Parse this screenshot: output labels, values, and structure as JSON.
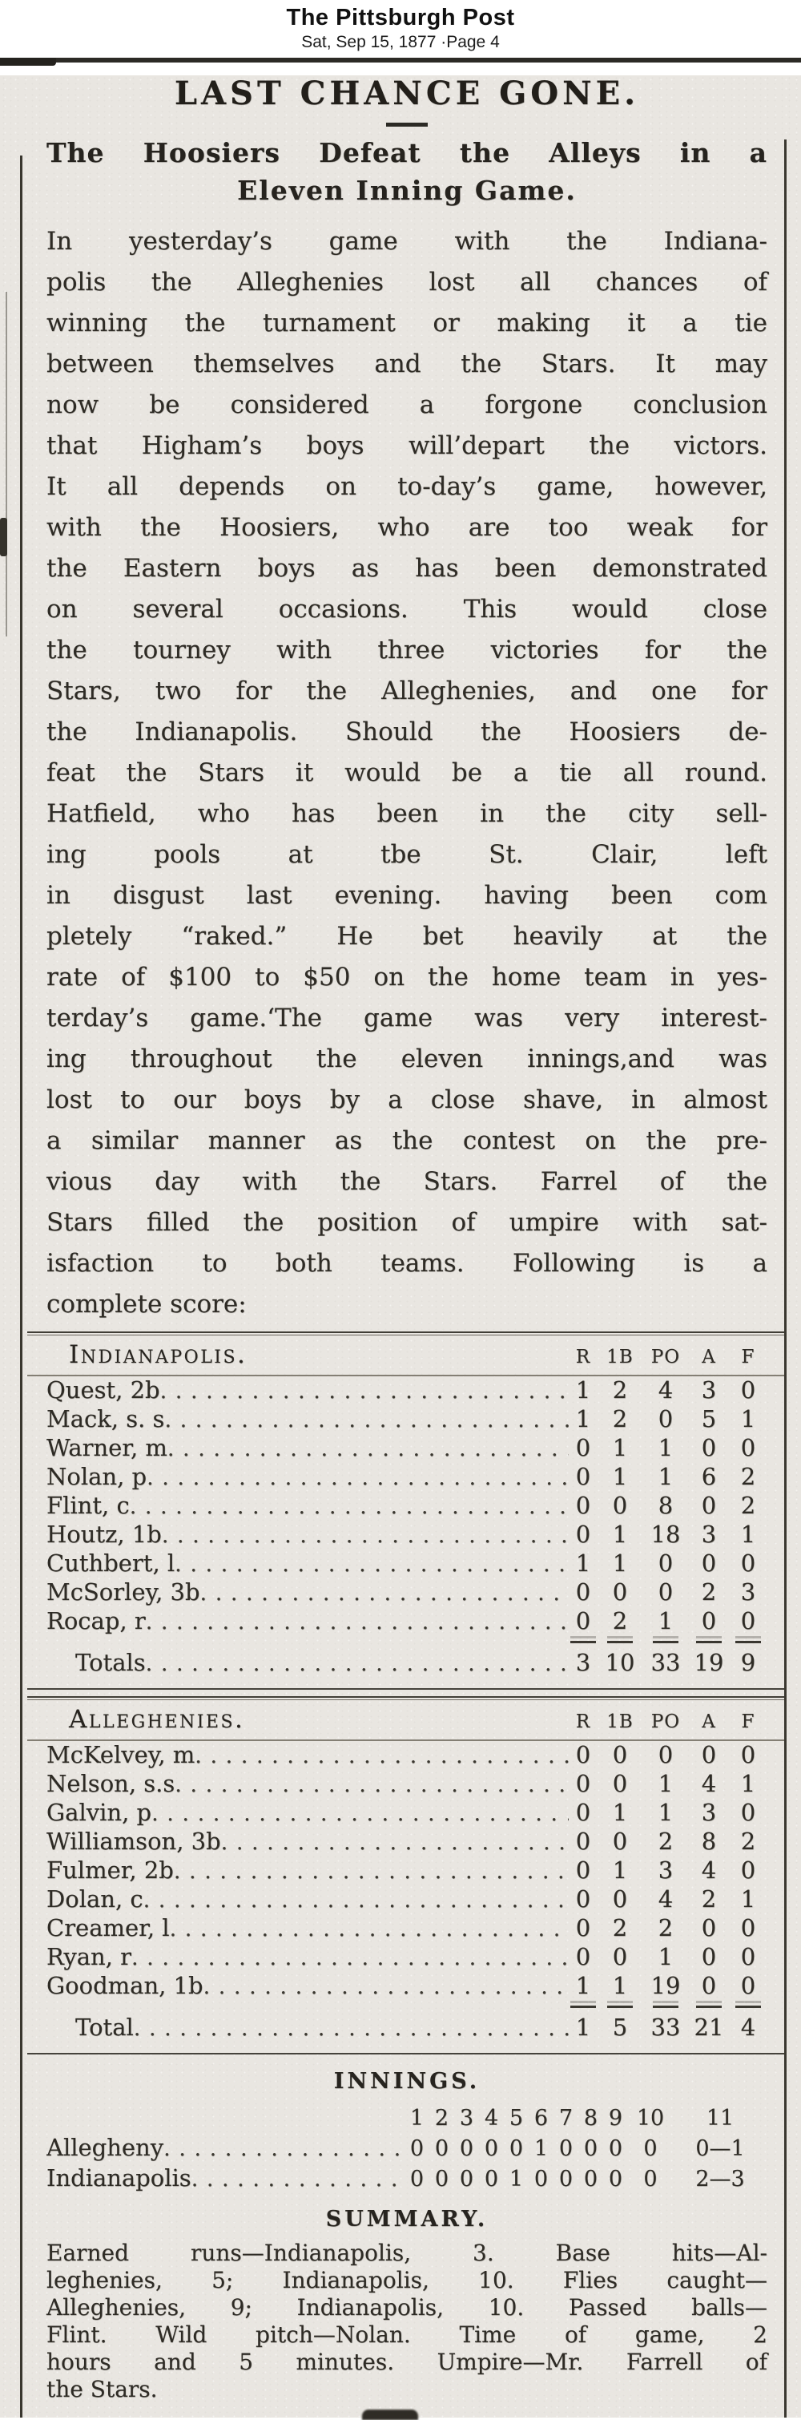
{
  "masthead": {
    "title": "The Pittsburgh Post",
    "date_line": "Sat, Sep 15, 1877 ·Page 4"
  },
  "article": {
    "headline": "LAST CHANCE GONE.",
    "subheadline_line1": "The Hoosiers Defeat the Alleys in a",
    "subheadline_line2": "Eleven Inning Game.",
    "body_lines": [
      "In yesterday’s game with the Indiana-",
      "polis the Alleghenies lost all chances of",
      "winning the turnament or making it a tie",
      "between themselves and the Stars.  It may",
      "now be considered a forgone conclusion",
      "that Higham’s boys will’depart the victors.",
      "It all depends on to-day’s game, however,",
      "with the Hoosiers, who are too weak for",
      "the Eastern boys as has been demonstrated",
      "on several occasions.  This would close",
      "the tourney with three victories for the",
      "Stars, two for the Alleghenies, and one for",
      "the Indianapolis.  Should the Hoosiers de-",
      "feat the Stars it would be a tie all round.",
      "Hatfield, who has been in the city sell-",
      "ing pools at tbe St. Clair, left",
      "in disgust last evening. having been com",
      "pletely “raked.”  He bet heavily at the",
      "rate of $100 to $50 on the home team in yes-",
      "terday’s game.‘The game was very interest-",
      "ing throughout the eleven innings,and was",
      "lost to our boys by a close shave, in almost",
      "a similar manner as the contest on the pre-",
      "vious day with the Stars.  Farrel of the",
      "Stars filled the position of umpire with sat-",
      "isfaction to both teams.  Following is a",
      "complete score:"
    ]
  },
  "box_scores": [
    {
      "team": "Indianapolis.",
      "columns": [
        "R",
        "1B",
        "PO",
        "A",
        "F"
      ],
      "rows": [
        {
          "player": "Quest, 2b",
          "stats": [
            "1",
            "2",
            "4",
            "3",
            "0"
          ]
        },
        {
          "player": "Mack, s. s",
          "stats": [
            "1",
            "2",
            "0",
            "5",
            "1"
          ]
        },
        {
          "player": "Warner, m",
          "stats": [
            "0",
            "1",
            "1",
            "0",
            "0"
          ]
        },
        {
          "player": "Nolan, p",
          "stats": [
            "0",
            "1",
            "1",
            "6",
            "2"
          ]
        },
        {
          "player": "Flint, c",
          "stats": [
            "0",
            "0",
            "8",
            "0",
            "2"
          ]
        },
        {
          "player": "Houtz, 1b",
          "stats": [
            "0",
            "1",
            "18",
            "3",
            "1"
          ]
        },
        {
          "player": "Cuthbert, l",
          "stats": [
            "1",
            "1",
            "0",
            "0",
            "0"
          ]
        },
        {
          "player": "McSorley, 3b",
          "stats": [
            "0",
            "0",
            "0",
            "2",
            "3"
          ]
        },
        {
          "player": "Rocap, r",
          "stats": [
            "0",
            "2",
            "1",
            "0",
            "0"
          ]
        }
      ],
      "totals_label": "Totals",
      "totals": [
        "3",
        "10",
        "33",
        "19",
        "9"
      ]
    },
    {
      "team": "Alleghenies.",
      "columns": [
        "R",
        "1B",
        "PO",
        "A",
        "F"
      ],
      "rows": [
        {
          "player": "McKelvey, m",
          "stats": [
            "0",
            "0",
            "0",
            "0",
            "0"
          ]
        },
        {
          "player": "Nelson, s.s",
          "stats": [
            "0",
            "0",
            "1",
            "4",
            "1"
          ]
        },
        {
          "player": "Galvin, p",
          "stats": [
            "0",
            "1",
            "1",
            "3",
            "0"
          ]
        },
        {
          "player": "Williamson, 3b",
          "stats": [
            "0",
            "0",
            "2",
            "8",
            "2"
          ]
        },
        {
          "player": "Fulmer, 2b",
          "stats": [
            "0",
            "1",
            "3",
            "4",
            "0"
          ]
        },
        {
          "player": "Dolan, c",
          "stats": [
            "0",
            "0",
            "4",
            "2",
            "1"
          ]
        },
        {
          "player": "Creamer, l",
          "stats": [
            "0",
            "2",
            "2",
            "0",
            "0"
          ]
        },
        {
          "player": "Ryan, r",
          "stats": [
            "0",
            "0",
            "1",
            "0",
            "0"
          ]
        },
        {
          "player": "Goodman, 1b",
          "stats": [
            "1",
            "1",
            "19",
            "0",
            "0"
          ]
        }
      ],
      "totals_label": "Total",
      "totals": [
        "1",
        "5",
        "33",
        "21",
        "4"
      ]
    }
  ],
  "innings": {
    "title": "INNINGS.",
    "numbers": [
      "1",
      "2",
      "3",
      "4",
      "5",
      "6",
      "7",
      "8",
      "9",
      "10",
      "11"
    ],
    "rows": [
      {
        "team": "Allegheny",
        "scores": [
          "0",
          "0",
          "0",
          "0",
          "0",
          "1",
          "0",
          "0",
          "0",
          "0",
          "0—1"
        ]
      },
      {
        "team": "Indianapolis",
        "scores": [
          "0",
          "0",
          "0",
          "0",
          "1",
          "0",
          "0",
          "0",
          "0",
          "0",
          "2—3"
        ]
      }
    ]
  },
  "summary": {
    "title": "SUMMARY.",
    "lines": [
      "Earned runs—Indianapolis, 3.  Base hits—Al-",
      "leghenies, 5;  Indianapolis, 10.  Flies caught—",
      "Alleghenies, 9;  Indianapolis, 10.  Passed balls—",
      "Flint.  Wild pitch—Nolan.  Time of game, 2",
      "hours and 5 minutes.  Umpire—Mr.  Farrell of",
      "the Stars."
    ]
  }
}
